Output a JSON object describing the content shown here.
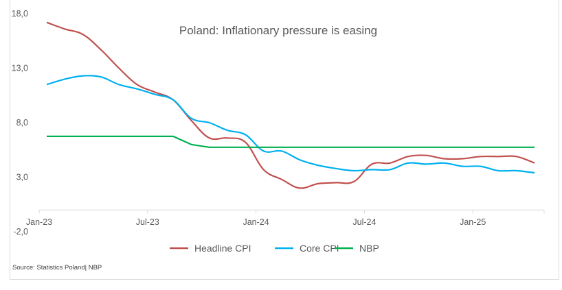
{
  "chart_data": {
    "type": "line",
    "title": "Poland: Inflationary pressure is easing",
    "xlabel": "",
    "ylabel": "",
    "ylim": [
      -2,
      18
    ],
    "yticks": [
      18,
      13,
      8,
      3,
      -2
    ],
    "ytick_labels": [
      "18,0",
      "13,0",
      "8,0",
      "3,0",
      "-2,0"
    ],
    "x_axis_crosses_at": 0,
    "x": [
      "Jan-23",
      "Feb-23",
      "Mar-23",
      "Apr-23",
      "May-23",
      "Jun-23",
      "Jul-23",
      "Aug-23",
      "Sep-23",
      "Oct-23",
      "Nov-23",
      "Dec-23",
      "Jan-24",
      "Feb-24",
      "Mar-24",
      "Apr-24",
      "May-24",
      "Jun-24",
      "Jul-24",
      "Aug-24",
      "Sep-24",
      "Oct-24",
      "Nov-24",
      "Dec-24",
      "Jan-25",
      "Feb-25",
      "Mar-25",
      "Apr-25"
    ],
    "xtick_labels": [
      "Jan-23",
      "Jul-23",
      "Jan-24",
      "Jul-24",
      "Jan-25"
    ],
    "xtick_indices": [
      0,
      6,
      12,
      18,
      24
    ],
    "grid": false,
    "legend_position": "bottom",
    "series": [
      {
        "name": "Headline CPI",
        "color": "#c0504d",
        "values": [
          17.2,
          16.6,
          16.1,
          14.7,
          13.0,
          11.5,
          10.8,
          10.1,
          8.2,
          6.6,
          6.6,
          6.2,
          3.7,
          2.8,
          2.0,
          2.4,
          2.5,
          2.6,
          4.2,
          4.3,
          4.9,
          5.0,
          4.7,
          4.7,
          4.9,
          4.9,
          4.9,
          4.3
        ]
      },
      {
        "name": "Core CPI",
        "color": "#00b0f0",
        "values": [
          11.5,
          12.0,
          12.3,
          12.2,
          11.5,
          11.1,
          10.6,
          10.1,
          8.4,
          8.0,
          7.3,
          6.9,
          5.4,
          5.4,
          4.6,
          4.1,
          3.8,
          3.6,
          3.7,
          3.7,
          4.3,
          4.2,
          4.3,
          4.0,
          4.0,
          3.6,
          3.6,
          3.4
        ]
      },
      {
        "name": "NBP",
        "color": "#00b050",
        "values": [
          6.75,
          6.75,
          6.75,
          6.75,
          6.75,
          6.75,
          6.75,
          6.75,
          6.0,
          5.75,
          5.75,
          5.75,
          5.75,
          5.75,
          5.75,
          5.75,
          5.75,
          5.75,
          5.75,
          5.75,
          5.75,
          5.75,
          5.75,
          5.75,
          5.75,
          5.75,
          5.75,
          5.75
        ]
      }
    ],
    "source": "Source: Statistics Poland| NBP"
  }
}
